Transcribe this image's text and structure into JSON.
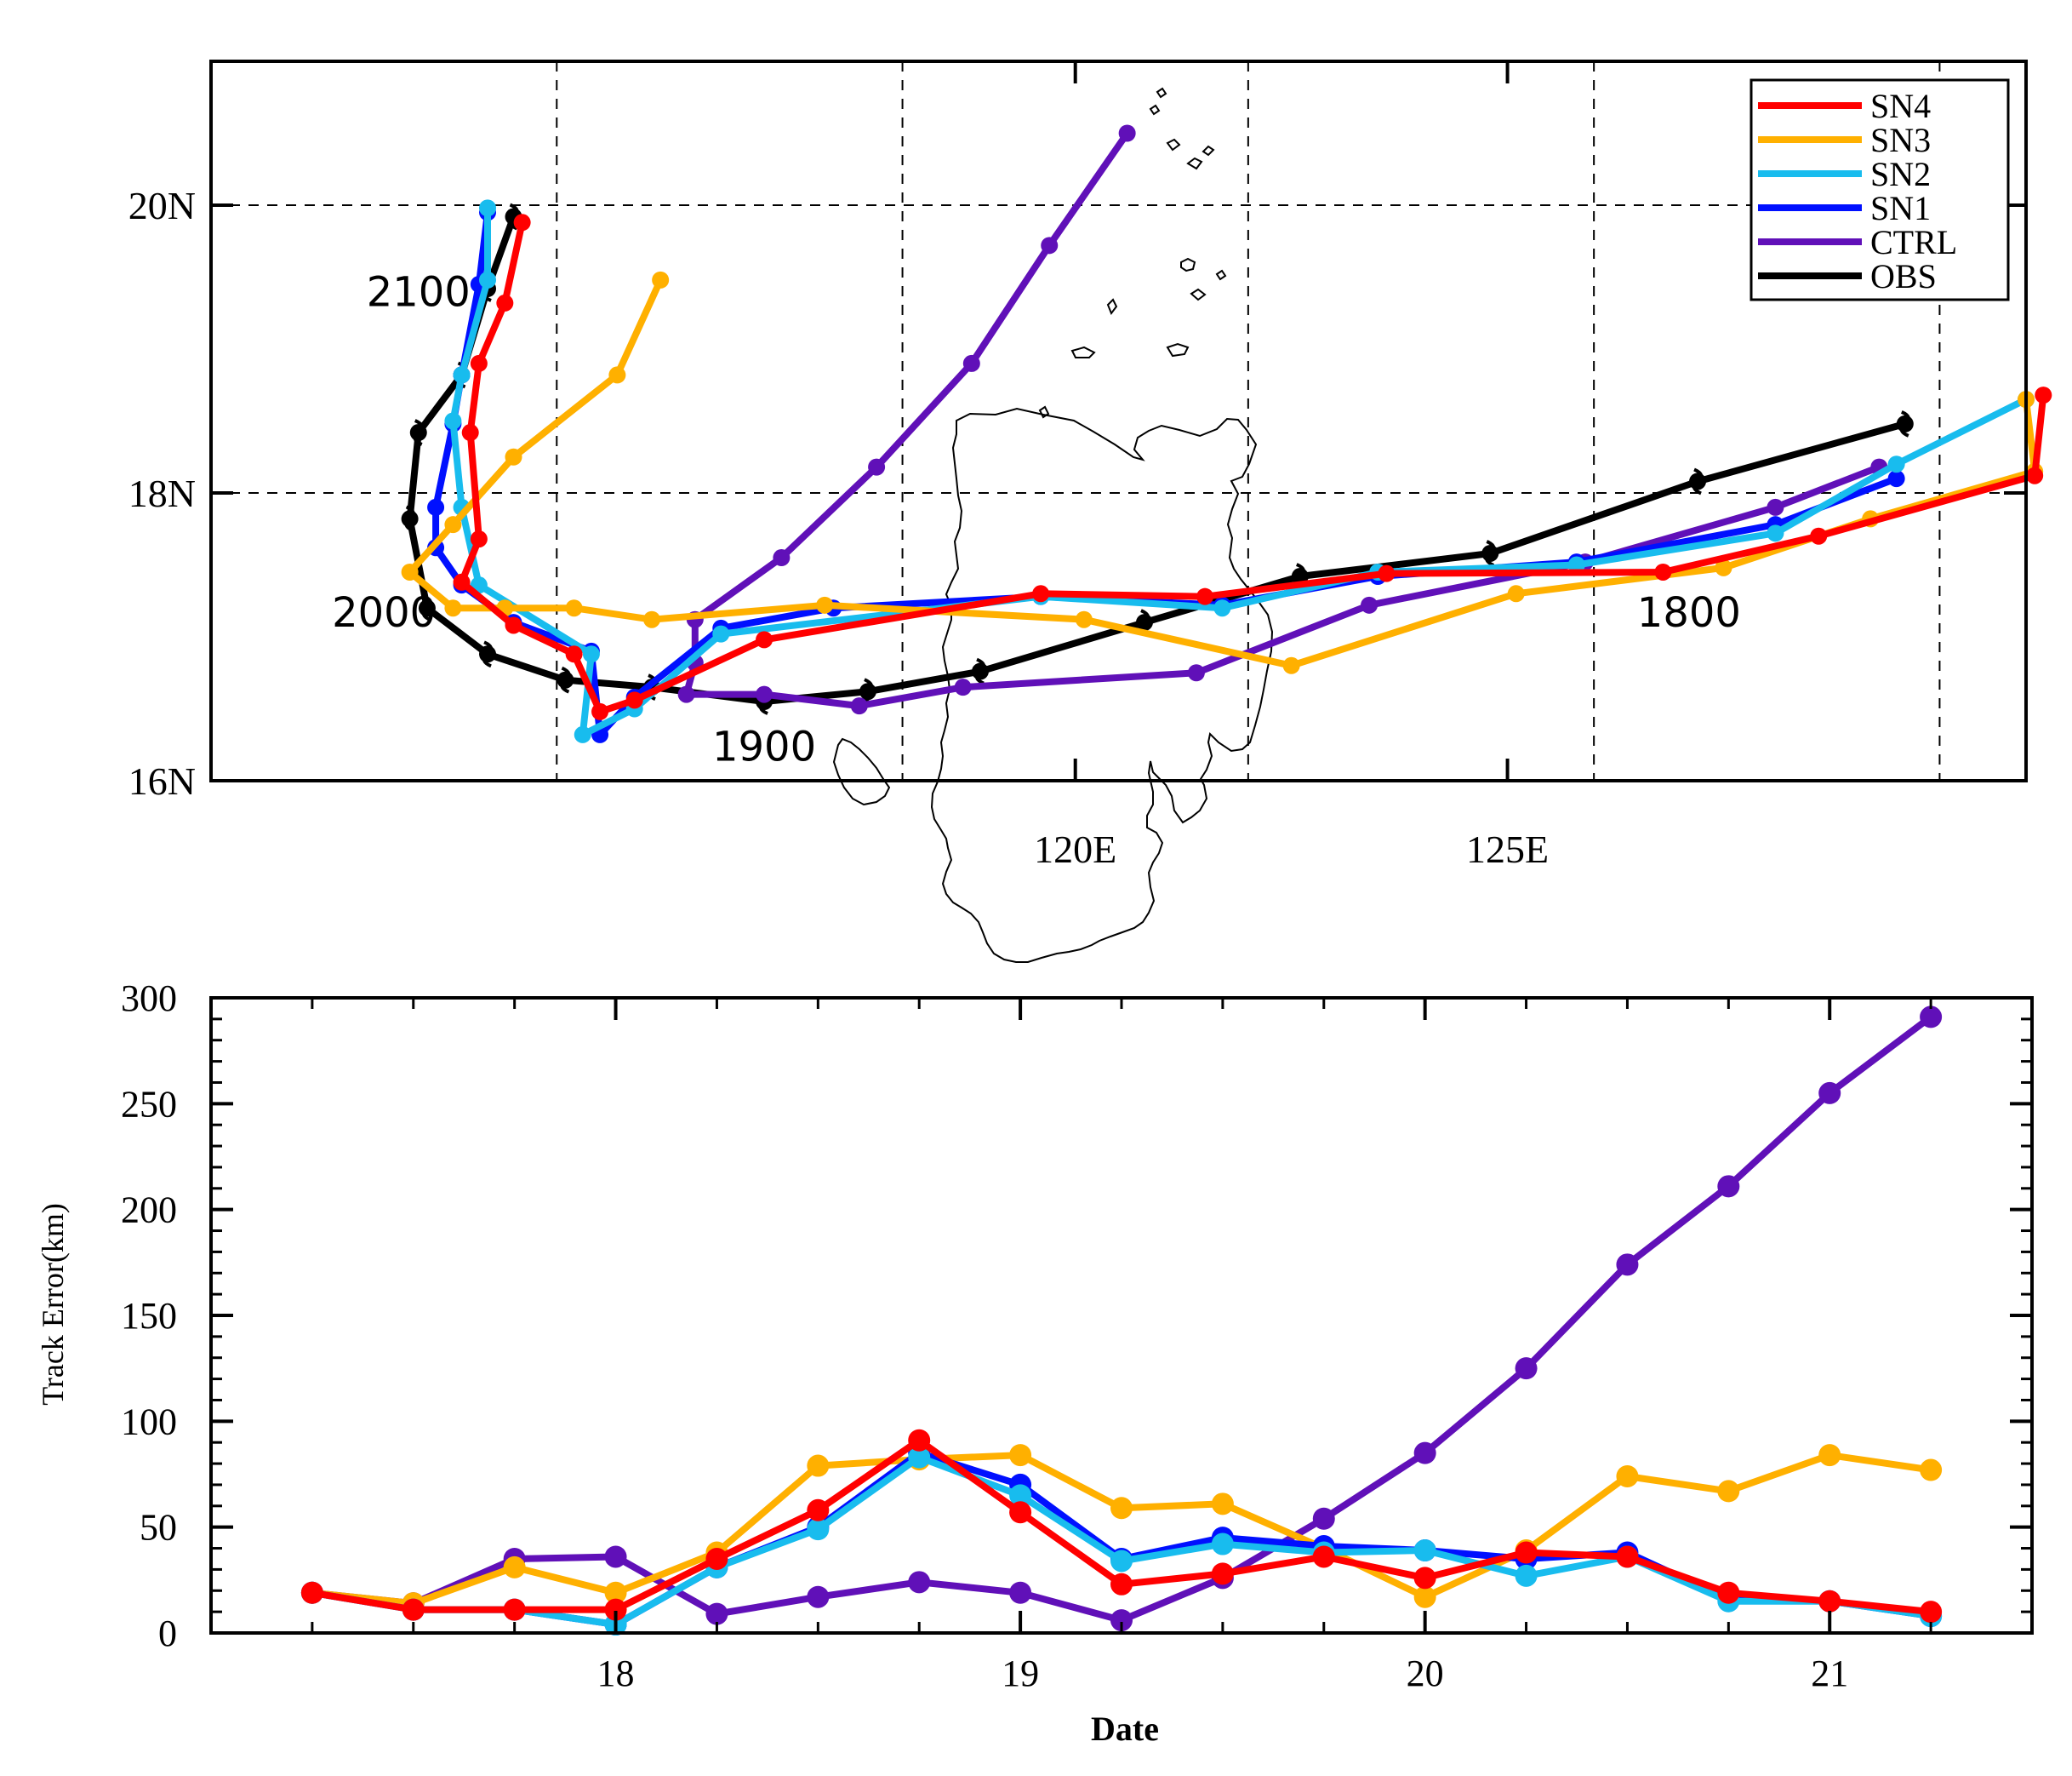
{
  "colors": {
    "SN4": "#ff0000",
    "SN3": "#ffb000",
    "SN2": "#18bcee",
    "SN1": "#0010ff",
    "CTRL": "#6010b8",
    "OBS": "#000000",
    "coast": "#000000",
    "grid": "#000000"
  },
  "chart_data": [
    {
      "type": "line",
      "name": "track-map",
      "xlim": [
        110,
        131
      ],
      "ylim": [
        16,
        21
      ],
      "x_ticks": [
        {
          "value": 120,
          "label": "120E"
        },
        {
          "value": 125,
          "label": "125E"
        }
      ],
      "y_ticks": [
        {
          "value": 16,
          "label": "16N"
        },
        {
          "value": 18,
          "label": "18N"
        },
        {
          "value": 20,
          "label": "20N"
        }
      ],
      "grid_x": [
        114,
        118,
        122,
        126,
        130
      ],
      "grid_y": [
        18,
        20
      ],
      "legend_position": "top-right",
      "legend": [
        "SN4",
        "SN3",
        "SN2",
        "SN1",
        "CTRL",
        "OBS"
      ],
      "annotations": [
        {
          "text": "2100",
          "lon": 112.4,
          "lat": 19.3
        },
        {
          "text": "2000",
          "lon": 112.0,
          "lat": 17.07
        },
        {
          "text": "1800",
          "lon": 127.1,
          "lat": 17.07
        },
        {
          "text": "1900",
          "lon": 116.4,
          "lat": 16.14
        }
      ],
      "series": [
        {
          "name": "OBS",
          "points": [
            [
              129.6,
              18.48
            ],
            [
              127.2,
              18.08
            ],
            [
              124.8,
              17.58
            ],
            [
              122.6,
              17.42
            ],
            [
              120.8,
              17.1
            ],
            [
              118.9,
              16.76
            ],
            [
              117.6,
              16.62
            ],
            [
              116.4,
              16.55
            ],
            [
              115.1,
              16.65
            ],
            [
              114.1,
              16.7
            ],
            [
              113.2,
              16.88
            ],
            [
              112.5,
              17.2
            ],
            [
              112.3,
              17.82
            ],
            [
              112.4,
              18.42
            ],
            [
              112.9,
              18.82
            ],
            [
              113.2,
              19.42
            ],
            [
              113.5,
              19.92
            ]
          ]
        },
        {
          "name": "CTRL",
          "points": [
            [
              120.6,
              20.5
            ],
            [
              119.7,
              19.72
            ],
            [
              118.8,
              18.9
            ],
            [
              117.7,
              18.18
            ],
            [
              116.6,
              17.55
            ],
            [
              115.6,
              17.12
            ],
            [
              115.6,
              16.82
            ],
            [
              115.5,
              16.6
            ],
            [
              116.4,
              16.6
            ],
            [
              117.5,
              16.52
            ],
            [
              118.7,
              16.65
            ],
            [
              121.4,
              16.75
            ],
            [
              123.4,
              17.22
            ],
            [
              125.9,
              17.52
            ],
            [
              128.1,
              17.9
            ],
            [
              129.3,
              18.18
            ]
          ]
        },
        {
          "name": "SN1",
          "points": [
            [
              113.2,
              19.95
            ],
            [
              113.1,
              19.45
            ],
            [
              112.9,
              18.82
            ],
            [
              112.8,
              18.48
            ],
            [
              112.6,
              17.9
            ],
            [
              112.6,
              17.62
            ],
            [
              112.9,
              17.36
            ],
            [
              113.5,
              17.1
            ],
            [
              114.4,
              16.9
            ],
            [
              114.5,
              16.32
            ],
            [
              114.9,
              16.58
            ],
            [
              115.9,
              17.06
            ],
            [
              117.2,
              17.2
            ],
            [
              119.6,
              17.28
            ],
            [
              121.7,
              17.22
            ],
            [
              123.5,
              17.42
            ],
            [
              125.8,
              17.52
            ],
            [
              128.1,
              17.78
            ],
            [
              129.5,
              18.1
            ]
          ]
        },
        {
          "name": "SN2",
          "points": [
            [
              113.2,
              19.98
            ],
            [
              113.2,
              19.48
            ],
            [
              112.9,
              18.82
            ],
            [
              112.8,
              18.5
            ],
            [
              112.9,
              17.9
            ],
            [
              113.1,
              17.36
            ],
            [
              114.4,
              16.88
            ],
            [
              114.3,
              16.32
            ],
            [
              114.9,
              16.5
            ],
            [
              115.9,
              17.02
            ],
            [
              119.6,
              17.28
            ],
            [
              121.7,
              17.2
            ],
            [
              123.5,
              17.45
            ],
            [
              125.8,
              17.5
            ],
            [
              128.1,
              17.72
            ],
            [
              129.5,
              18.2
            ],
            [
              131.0,
              18.65
            ]
          ]
        },
        {
          "name": "SN3",
          "points": [
            [
              115.2,
              19.48
            ],
            [
              114.7,
              18.82
            ],
            [
              113.5,
              18.25
            ],
            [
              112.8,
              17.78
            ],
            [
              112.3,
              17.45
            ],
            [
              112.8,
              17.2
            ],
            [
              113.4,
              17.2
            ],
            [
              114.2,
              17.2
            ],
            [
              115.1,
              17.12
            ],
            [
              117.1,
              17.22
            ],
            [
              120.1,
              17.12
            ],
            [
              122.5,
              16.8
            ],
            [
              125.1,
              17.3
            ],
            [
              127.5,
              17.48
            ],
            [
              129.2,
              17.82
            ],
            [
              131.1,
              18.15
            ],
            [
              131.0,
              18.65
            ]
          ]
        },
        {
          "name": "SN4",
          "points": [
            [
              113.6,
              19.88
            ],
            [
              113.4,
              19.32
            ],
            [
              113.1,
              18.9
            ],
            [
              113.0,
              18.42
            ],
            [
              113.1,
              17.68
            ],
            [
              112.9,
              17.38
            ],
            [
              113.5,
              17.08
            ],
            [
              114.2,
              16.88
            ],
            [
              114.5,
              16.48
            ],
            [
              114.9,
              16.56
            ],
            [
              116.4,
              16.98
            ],
            [
              119.6,
              17.3
            ],
            [
              121.5,
              17.28
            ],
            [
              123.6,
              17.44
            ],
            [
              126.8,
              17.45
            ],
            [
              128.6,
              17.7
            ],
            [
              131.1,
              18.12
            ],
            [
              131.2,
              18.68
            ]
          ]
        }
      ]
    },
    {
      "type": "line",
      "name": "track-error",
      "xlabel": "Date",
      "ylabel": "Track Error(km)",
      "xlim": [
        17.0,
        21.5
      ],
      "ylim": [
        0,
        300
      ],
      "x_ticks": [
        18,
        19,
        20,
        21
      ],
      "y_ticks": [
        0,
        50,
        100,
        150,
        200,
        250,
        300
      ],
      "x": [
        17.25,
        17.5,
        17.75,
        18.0,
        18.25,
        18.5,
        18.75,
        19.0,
        19.25,
        19.5,
        19.75,
        20.0,
        20.25,
        20.5,
        20.75,
        21.0,
        21.25
      ],
      "series": [
        {
          "name": "CTRL",
          "values": [
            19,
            14,
            35,
            36,
            9,
            17,
            24,
            19,
            6,
            26,
            54,
            85,
            125,
            174,
            211,
            255,
            291
          ]
        },
        {
          "name": "SN3",
          "values": [
            19,
            14,
            31,
            19,
            38,
            79,
            82,
            84,
            59,
            61,
            40,
            17,
            39,
            74,
            67,
            84,
            77
          ]
        },
        {
          "name": "SN1",
          "values": [
            19,
            11,
            11,
            4,
            31,
            50,
            85,
            70,
            35,
            45,
            41,
            39,
            35,
            38,
            16,
            15,
            8
          ]
        },
        {
          "name": "SN2",
          "values": [
            19,
            11,
            11,
            4,
            31,
            49,
            83,
            65,
            34,
            42,
            38,
            39,
            27,
            36,
            15,
            15,
            8
          ]
        },
        {
          "name": "SN4",
          "values": [
            19,
            11,
            11,
            11,
            35,
            58,
            91,
            57,
            23,
            28,
            36,
            26,
            38,
            36,
            19,
            15,
            10
          ]
        }
      ]
    }
  ]
}
